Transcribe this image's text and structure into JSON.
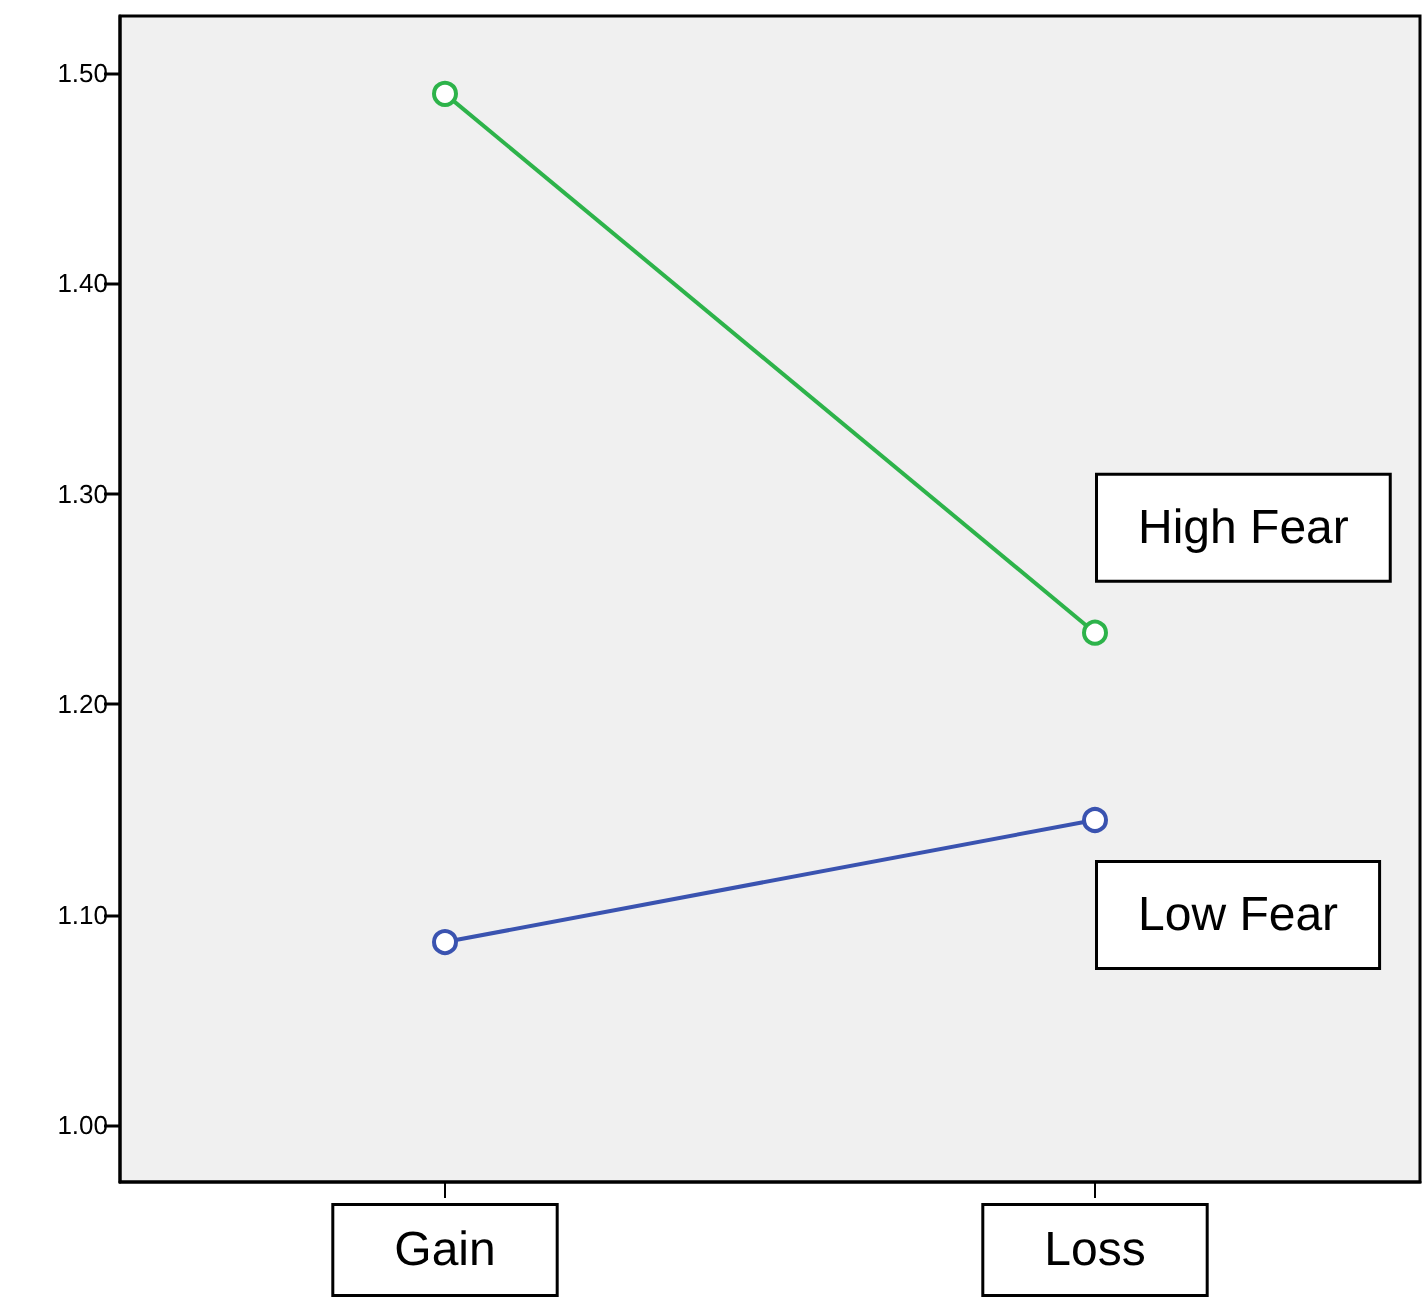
{
  "chart_data": {
    "type": "line",
    "categories": [
      "Gain",
      "Loss"
    ],
    "series": [
      {
        "name": "High Fear",
        "color": "#2db34a",
        "values": [
          1.49,
          1.234
        ]
      },
      {
        "name": "Low Fear",
        "color": "#3a53b0",
        "values": [
          1.087,
          1.145
        ]
      }
    ],
    "ylim": [
      0.973,
      1.527
    ],
    "yticks": [
      {
        "value": 1.0,
        "label": "1.00"
      },
      {
        "value": 1.1,
        "label": "1.10"
      },
      {
        "value": 1.2,
        "label": "1.20"
      },
      {
        "value": 1.3,
        "label": "1.30"
      },
      {
        "value": 1.4,
        "label": "1.40"
      },
      {
        "value": 1.5,
        "label": "1.50"
      }
    ],
    "grid": false,
    "legend": false,
    "marker": "circle",
    "line_style": "solid"
  }
}
